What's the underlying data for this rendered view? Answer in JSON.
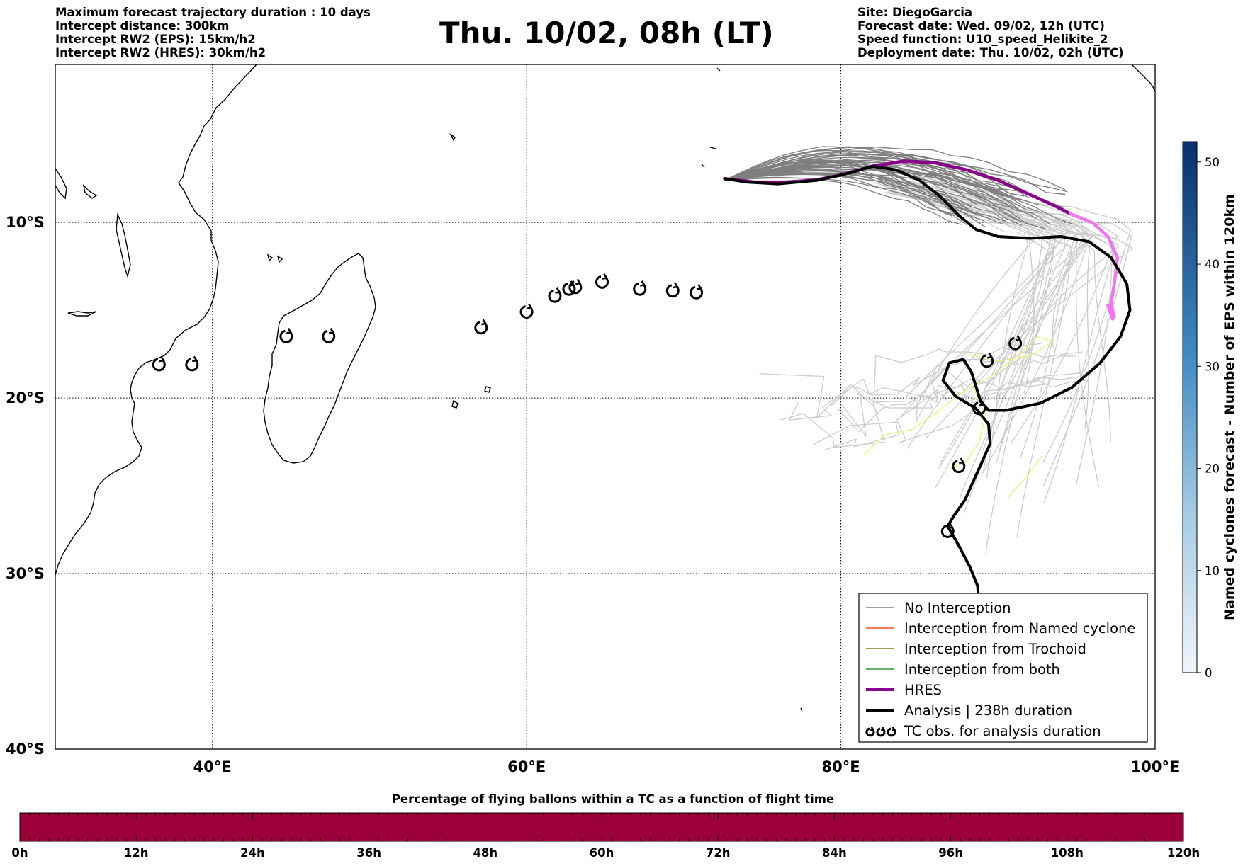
{
  "header": {
    "left_lines": [
      "Maximum forecast trajectory duration : 10 days",
      "Intercept distance: 300km",
      "Intercept RW2 (EPS):  15km/h2",
      "Intercept RW2 (HRES): 30km/h2"
    ],
    "title": "Thu. 10/02, 08h (LT)",
    "right_lines": [
      "Site: DiegoGarcia",
      "Forecast date: Wed. 09/02, 12h (UTC)",
      "Speed function: U10_speed_Helikite_2",
      "Deployment date: Thu. 10/02, 02h (UTC)"
    ]
  },
  "map": {
    "lon_ticks": [
      "40°E",
      "60°E",
      "80°E",
      "100°E"
    ],
    "lat_ticks": [
      "10°S",
      "20°S",
      "30°S",
      "40°S"
    ],
    "lon_range": [
      30,
      100
    ],
    "lat_range": [
      -1,
      -40
    ],
    "colors": {
      "no_interception": "#7f7f7f",
      "named_cyclone": "#e8561e",
      "trochoid": "#8a7a14",
      "both": "#2e9a2e",
      "hres": "#8b008b",
      "hres_late": "#ee77ee",
      "analysis": "#000000",
      "faint_tracks": "#cccccc",
      "yellow_tracks": "#eeee88"
    }
  },
  "tc_obs": [
    [
      36.6,
      -18.1
    ],
    [
      38.7,
      -18.1
    ],
    [
      44.7,
      -16.5
    ],
    [
      47.4,
      -16.5
    ],
    [
      57.1,
      -16.0
    ],
    [
      60.0,
      -15.1
    ],
    [
      61.8,
      -14.2
    ],
    [
      62.7,
      -13.8
    ],
    [
      63.1,
      -13.7
    ],
    [
      64.8,
      -13.4
    ],
    [
      67.2,
      -13.8
    ],
    [
      69.3,
      -13.9
    ],
    [
      70.8,
      -14.0
    ],
    [
      91.1,
      -16.9
    ],
    [
      89.3,
      -17.9
    ],
    [
      88.8,
      -20.6
    ],
    [
      87.5,
      -23.9
    ],
    [
      86.8,
      -27.6
    ]
  ],
  "analysis_track": [
    [
      72.6,
      -7.5
    ],
    [
      74.0,
      -7.7
    ],
    [
      76.0,
      -7.8
    ],
    [
      78.5,
      -7.6
    ],
    [
      80.5,
      -7.2
    ],
    [
      82.0,
      -6.8
    ],
    [
      83.5,
      -7.0
    ],
    [
      85.0,
      -7.6
    ],
    [
      86.3,
      -8.5
    ],
    [
      87.5,
      -9.6
    ],
    [
      88.6,
      -10.4
    ],
    [
      90.0,
      -10.8
    ],
    [
      92.0,
      -10.9
    ],
    [
      94.0,
      -10.8
    ],
    [
      95.8,
      -11.1
    ],
    [
      97.2,
      -12.0
    ],
    [
      98.2,
      -13.5
    ],
    [
      98.4,
      -15.0
    ],
    [
      97.8,
      -16.5
    ],
    [
      96.5,
      -18.0
    ],
    [
      94.7,
      -19.4
    ],
    [
      92.7,
      -20.3
    ],
    [
      90.5,
      -20.7
    ],
    [
      89.4,
      -20.7
    ],
    [
      88.9,
      -20.2
    ],
    [
      88.3,
      -18.5
    ],
    [
      87.8,
      -17.8
    ],
    [
      86.9,
      -18.0
    ],
    [
      86.5,
      -19.0
    ],
    [
      87.3,
      -19.9
    ],
    [
      88.6,
      -20.6
    ],
    [
      89.4,
      -21.5
    ],
    [
      89.5,
      -22.6
    ],
    [
      88.9,
      -23.8
    ],
    [
      88.4,
      -24.8
    ],
    [
      87.9,
      -25.8
    ],
    [
      87.2,
      -26.7
    ],
    [
      86.8,
      -27.3
    ],
    [
      87.5,
      -28.4
    ],
    [
      88.2,
      -29.6
    ],
    [
      88.7,
      -30.7
    ],
    [
      88.8,
      -31.9
    ]
  ],
  "hres_track": [
    [
      72.6,
      -7.5
    ],
    [
      74.5,
      -7.7
    ],
    [
      76.5,
      -7.7
    ],
    [
      78.3,
      -7.6
    ],
    [
      80.0,
      -7.3
    ],
    [
      82.0,
      -6.8
    ],
    [
      84.0,
      -6.5
    ],
    [
      86.0,
      -6.6
    ],
    [
      88.0,
      -7.0
    ],
    [
      90.0,
      -7.6
    ],
    [
      92.0,
      -8.4
    ],
    [
      93.5,
      -9.0
    ],
    [
      94.6,
      -9.5
    ]
  ],
  "hres_late_track": [
    [
      94.6,
      -9.5
    ],
    [
      96.0,
      -10.0
    ],
    [
      97.0,
      -10.8
    ],
    [
      97.6,
      -12.0
    ],
    [
      97.4,
      -13.5
    ],
    [
      97.2,
      -14.6
    ],
    [
      97.4,
      -15.4
    ],
    [
      97.0,
      -14.7
    ],
    [
      97.3,
      -15.5
    ]
  ],
  "legend": {
    "items": [
      {
        "label": "No Interception",
        "key": "no_interception",
        "style": "thin"
      },
      {
        "label": "Interception from Named cyclone",
        "key": "named_cyclone",
        "style": "thin"
      },
      {
        "label": "Interception from Trochoid",
        "key": "trochoid",
        "style": "thin"
      },
      {
        "label": "Interception from both",
        "key": "both",
        "style": "thin"
      },
      {
        "label": "HRES",
        "key": "hres",
        "style": "thick"
      },
      {
        "label": "Analysis | 238h duration",
        "key": "analysis",
        "style": "thick"
      },
      {
        "label": "TC obs. for analysis duration",
        "key": "analysis",
        "style": "markers"
      }
    ]
  },
  "colorbar_right": {
    "label": "Named cyclones forecast - Number of EPS within 120km",
    "ticks": [
      "0",
      "10",
      "20",
      "30",
      "40",
      "50"
    ],
    "range": [
      0,
      52
    ],
    "color_low": "#deebf7",
    "color_high": "#08306b"
  },
  "colorbar_bottom": {
    "title": "Percentage of flying ballons within a TC as a function of flight time",
    "ticks": [
      "0h",
      "12h",
      "24h",
      "36h",
      "48h",
      "60h",
      "72h",
      "84h",
      "96h",
      "108h",
      "120h"
    ],
    "fill_color": "#9b0039"
  }
}
